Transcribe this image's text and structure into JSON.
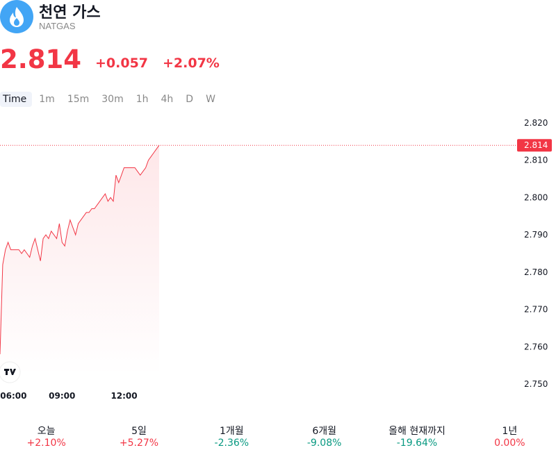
{
  "header": {
    "title": "천연 가스",
    "symbol": "NATGAS"
  },
  "quote": {
    "price": "2.814",
    "change": "+0.057",
    "change_percent": "+2.07%"
  },
  "timeframes": [
    "Time",
    "1m",
    "15m",
    "30m",
    "1h",
    "4h",
    "D",
    "W"
  ],
  "chart_data": {
    "type": "line",
    "color": "#f23645",
    "values": [
      2.758,
      2.782,
      2.786,
      2.788,
      2.786,
      2.786,
      2.786,
      2.786,
      2.785,
      2.786,
      2.785,
      2.784,
      2.787,
      2.789,
      2.786,
      2.783,
      2.789,
      2.79,
      2.789,
      2.791,
      2.79,
      2.789,
      2.793,
      2.788,
      2.787,
      2.791,
      2.794,
      2.792,
      2.79,
      2.793,
      2.794,
      2.795,
      2.796,
      2.796,
      2.797,
      2.797,
      2.798,
      2.799,
      2.8,
      2.801,
      2.799,
      2.8,
      2.799,
      2.806,
      2.804,
      2.806,
      2.808,
      2.808,
      2.808,
      2.808,
      2.808,
      2.807,
      2.806,
      2.807,
      2.808,
      2.81,
      2.811,
      2.812,
      2.813,
      2.814
    ],
    "xlim": [
      0,
      59
    ],
    "xticks": [
      {
        "value": 5,
        "label": "06:00"
      },
      {
        "value": 23,
        "label": "09:00"
      },
      {
        "value": 46,
        "label": "12:00"
      }
    ],
    "ylim": [
      2.75,
      2.82
    ],
    "yticks": [
      {
        "value": 2.82,
        "label": "2.820"
      },
      {
        "value": 2.81,
        "label": "2.810"
      },
      {
        "value": 2.8,
        "label": "2.800"
      },
      {
        "value": 2.79,
        "label": "2.790"
      },
      {
        "value": 2.78,
        "label": "2.780"
      },
      {
        "value": 2.77,
        "label": "2.770"
      },
      {
        "value": 2.76,
        "label": "2.760"
      },
      {
        "value": 2.75,
        "label": "2.750"
      }
    ]
  },
  "periods": [
    {
      "label": "오늘",
      "change": "+2.10%"
    },
    {
      "label": "5일",
      "change": "+5.27%"
    },
    {
      "label": "1개월",
      "change": "-2.36%"
    },
    {
      "label": "6개월",
      "change": "-9.08%"
    },
    {
      "label": "올해 현재까지",
      "change": "-19.64%"
    },
    {
      "label": "1년",
      "change": "0.00%"
    }
  ]
}
